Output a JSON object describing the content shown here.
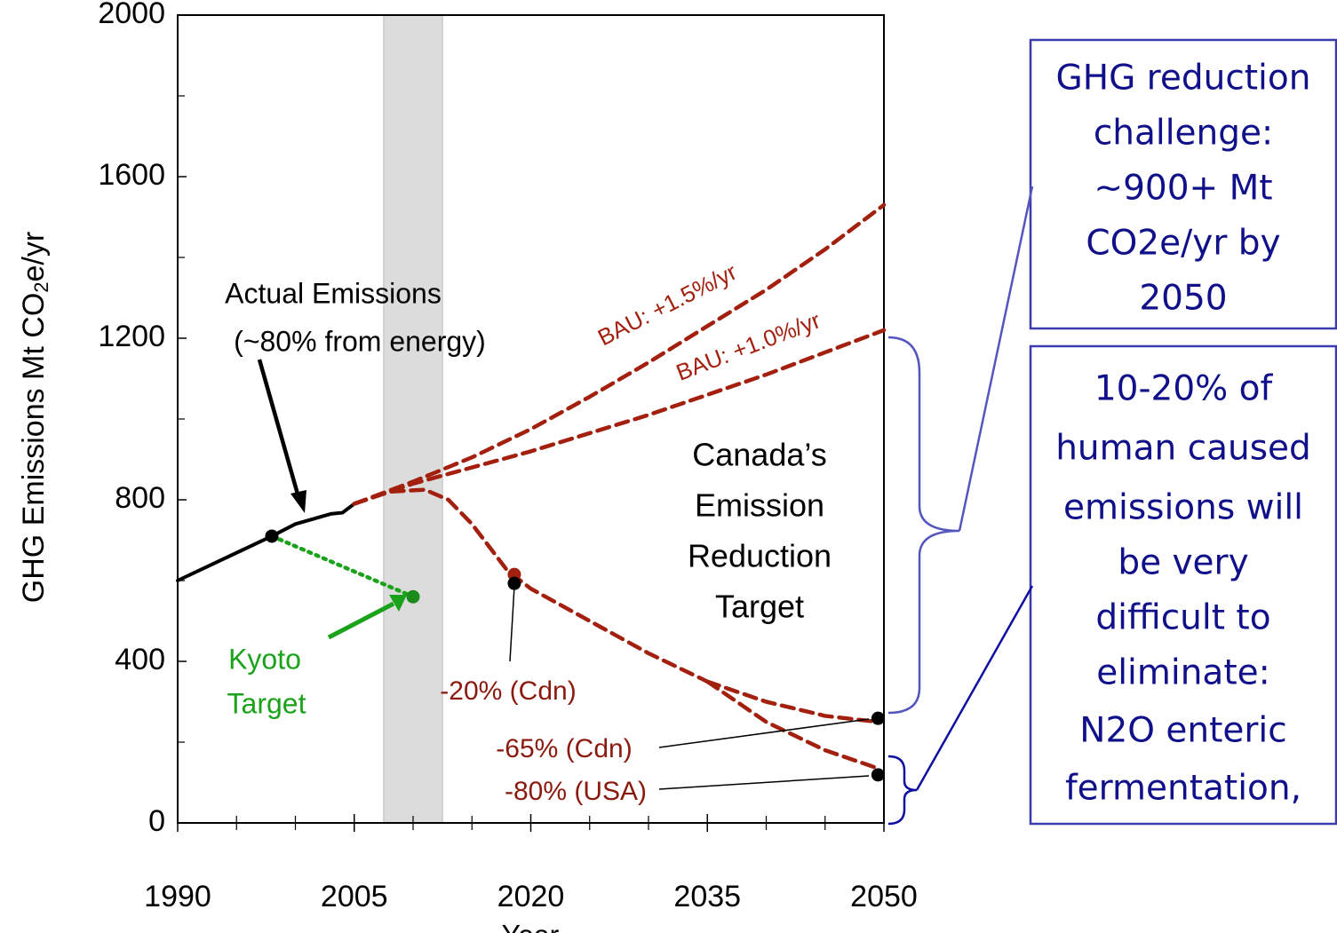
{
  "chart_data": {
    "type": "line",
    "xlabel": "Year",
    "ylabel": [
      "GHG Emissions Mt CO",
      "2",
      "e/yr"
    ],
    "xlim": [
      1990,
      2050
    ],
    "ylim": [
      0,
      2000
    ],
    "xticks": [
      1990,
      2005,
      2020,
      2035,
      2050
    ],
    "xminorticks": [
      1995,
      2000,
      2010,
      2015,
      2025,
      2030,
      2040,
      2045
    ],
    "yticks": [
      0,
      400,
      800,
      1200,
      1600,
      2000
    ],
    "yminorticks": [
      200,
      600,
      1000,
      1400,
      1800
    ],
    "shaded_region": [
      2007.5,
      2012.5
    ],
    "legend": false,
    "series": [
      {
        "color": "#000000",
        "style": "solid",
        "x": [
          1990,
          1994,
          1998,
          2000,
          2003,
          2004,
          2005
        ],
        "values": [
          600,
          655,
          710,
          740,
          765,
          768,
          790
        ]
      },
      {
        "color": "#a3200f",
        "style": "dashed",
        "x": [
          2005,
          2010,
          2015,
          2020,
          2025,
          2030,
          2035,
          2040,
          2045,
          2050
        ],
        "values": [
          790,
          845,
          905,
          975,
          1055,
          1140,
          1230,
          1320,
          1420,
          1530
        ]
      },
      {
        "color": "#a3200f",
        "style": "dashed",
        "x": [
          2005,
          2010,
          2015,
          2020,
          2025,
          2030,
          2035,
          2040,
          2045,
          2050
        ],
        "values": [
          790,
          840,
          880,
          920,
          965,
          1010,
          1060,
          1110,
          1165,
          1220
        ]
      },
      {
        "color": "#a3200f",
        "style": "dashed",
        "x": [
          2005,
          2008,
          2011,
          2013,
          2015,
          2018,
          2020,
          2025,
          2030,
          2035
        ],
        "values": [
          790,
          820,
          825,
          800,
          740,
          625,
          580,
          500,
          420,
          350
        ]
      },
      {
        "color": "#a3200f",
        "style": "dashed",
        "x": [
          2035,
          2040,
          2045,
          2049.5
        ],
        "values": [
          350,
          300,
          265,
          250
        ]
      },
      {
        "color": "#a3200f",
        "style": "dashed",
        "x": [
          2035,
          2040,
          2045,
          2049.5
        ],
        "values": [
          350,
          250,
          180,
          135
        ]
      },
      {
        "color": "#1aa31a",
        "style": "dotted",
        "x": [
          1998,
          2010
        ],
        "values": [
          710,
          560
        ]
      }
    ],
    "points": [
      {
        "x": 1998,
        "y": 710,
        "color": "#000000"
      },
      {
        "x": 2010,
        "y": 560,
        "color": "#1a8a1a"
      },
      {
        "x": 2018.6,
        "y": 615,
        "color": "#a3200f"
      },
      {
        "x": 2018.6,
        "y": 593,
        "color": "#000000"
      },
      {
        "x": 2049.5,
        "y": 259,
        "color": "#000000"
      },
      {
        "x": 2049.5,
        "y": 119,
        "color": "#000000"
      }
    ],
    "annotations": [
      {
        "lines": [
          "Actual Emissions",
          "(~80% from energy)"
        ]
      },
      {
        "lines": [
          "Kyoto",
          "Target"
        ]
      },
      {
        "lines": [
          "BAU: +1.5%/yr"
        ]
      },
      {
        "lines": [
          "BAU: +1.0%/yr"
        ]
      },
      {
        "lines": [
          "Canada’s",
          "Emission",
          "Reduction",
          "Target"
        ]
      },
      {
        "lines": [
          "-20% (Cdn)"
        ]
      },
      {
        "lines": [
          "-65% (Cdn)"
        ]
      },
      {
        "lines": [
          "-80% (USA)"
        ]
      }
    ],
    "boxes": [
      {
        "lines": [
          "GHG reduction",
          "challenge:",
          "~900+ Mt",
          "CO2e/yr by",
          "2050"
        ]
      },
      {
        "lines": [
          "10-20% of",
          "human caused",
          "emissions will",
          "be very",
          "difficult to",
          "eliminate:",
          "N2O enteric",
          "fermentation,"
        ]
      }
    ]
  }
}
